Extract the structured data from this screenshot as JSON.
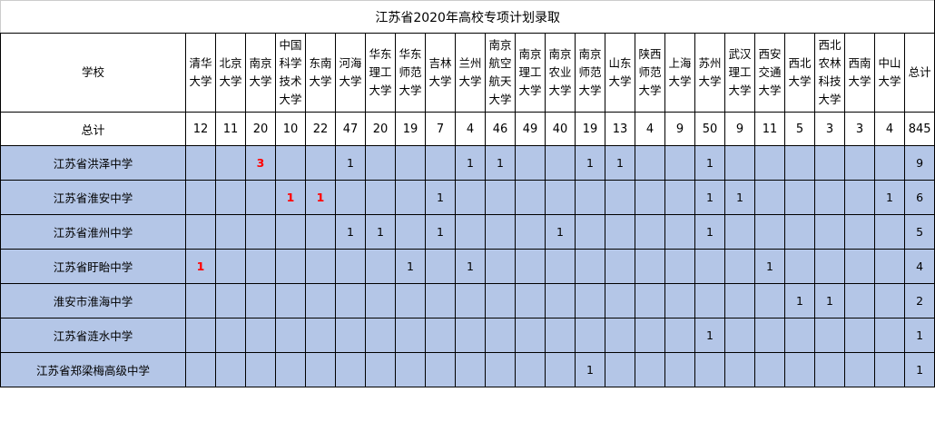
{
  "title": "江苏省2020年高校专项计划录取",
  "header_label": "学校",
  "total_label": "总计",
  "highlight_color": "#ff0000",
  "row_background": "#b4c6e7",
  "universities": [
    "清华大学",
    "北京大学",
    "南京大学",
    "中国科学技术大学",
    "东南大学",
    "河海大学",
    "华东理工大学",
    "华东师范大学",
    "吉林大学",
    "兰州大学",
    "南京航空航天大学",
    "南京理工大学",
    "南京农业大学",
    "南京师范大学",
    "山东大学",
    "陕西师范大学",
    "上海大学",
    "苏州大学",
    "武汉理工大学",
    "西安交通大学",
    "西北大学",
    "西北农林科技大学",
    "西南大学",
    "中山大学"
  ],
  "total_column_label": "总计",
  "totals": [
    12,
    11,
    20,
    10,
    22,
    47,
    20,
    19,
    7,
    4,
    46,
    49,
    40,
    19,
    13,
    4,
    9,
    50,
    9,
    11,
    5,
    3,
    3,
    4
  ],
  "grand_total": 845,
  "rows": [
    {
      "school": "江苏省洪泽中学",
      "values": [
        null,
        null,
        3,
        null,
        null,
        1,
        null,
        null,
        null,
        1,
        1,
        null,
        null,
        1,
        1,
        null,
        null,
        1,
        null,
        null,
        null,
        null,
        null,
        null
      ],
      "highlighted": [
        2
      ],
      "total": 9
    },
    {
      "school": "江苏省淮安中学",
      "values": [
        null,
        null,
        null,
        1,
        1,
        null,
        null,
        null,
        1,
        null,
        null,
        null,
        null,
        null,
        null,
        null,
        null,
        1,
        1,
        null,
        null,
        null,
        null,
        1
      ],
      "highlighted": [
        3,
        4
      ],
      "total": 6
    },
    {
      "school": "江苏省淮州中学",
      "values": [
        null,
        null,
        null,
        null,
        null,
        1,
        1,
        null,
        1,
        null,
        null,
        null,
        1,
        null,
        null,
        null,
        null,
        1,
        null,
        null,
        null,
        null,
        null,
        null
      ],
      "highlighted": [],
      "total": 5
    },
    {
      "school": "江苏省盱眙中学",
      "values": [
        1,
        null,
        null,
        null,
        null,
        null,
        null,
        1,
        null,
        1,
        null,
        null,
        null,
        null,
        null,
        null,
        null,
        null,
        null,
        1,
        null,
        null,
        null,
        null
      ],
      "highlighted": [
        0
      ],
      "total": 4
    },
    {
      "school": "淮安市淮海中学",
      "values": [
        null,
        null,
        null,
        null,
        null,
        null,
        null,
        null,
        null,
        null,
        null,
        null,
        null,
        null,
        null,
        null,
        null,
        null,
        null,
        null,
        1,
        1,
        null,
        null
      ],
      "highlighted": [],
      "total": 2
    },
    {
      "school": "江苏省涟水中学",
      "values": [
        null,
        null,
        null,
        null,
        null,
        null,
        null,
        null,
        null,
        null,
        null,
        null,
        null,
        null,
        null,
        null,
        null,
        1,
        null,
        null,
        null,
        null,
        null,
        null
      ],
      "highlighted": [],
      "total": 1
    },
    {
      "school": "江苏省郑梁梅高级中学",
      "values": [
        null,
        null,
        null,
        null,
        null,
        null,
        null,
        null,
        null,
        null,
        null,
        null,
        null,
        1,
        null,
        null,
        null,
        null,
        null,
        null,
        null,
        null,
        null,
        null
      ],
      "highlighted": [],
      "total": 1
    }
  ]
}
